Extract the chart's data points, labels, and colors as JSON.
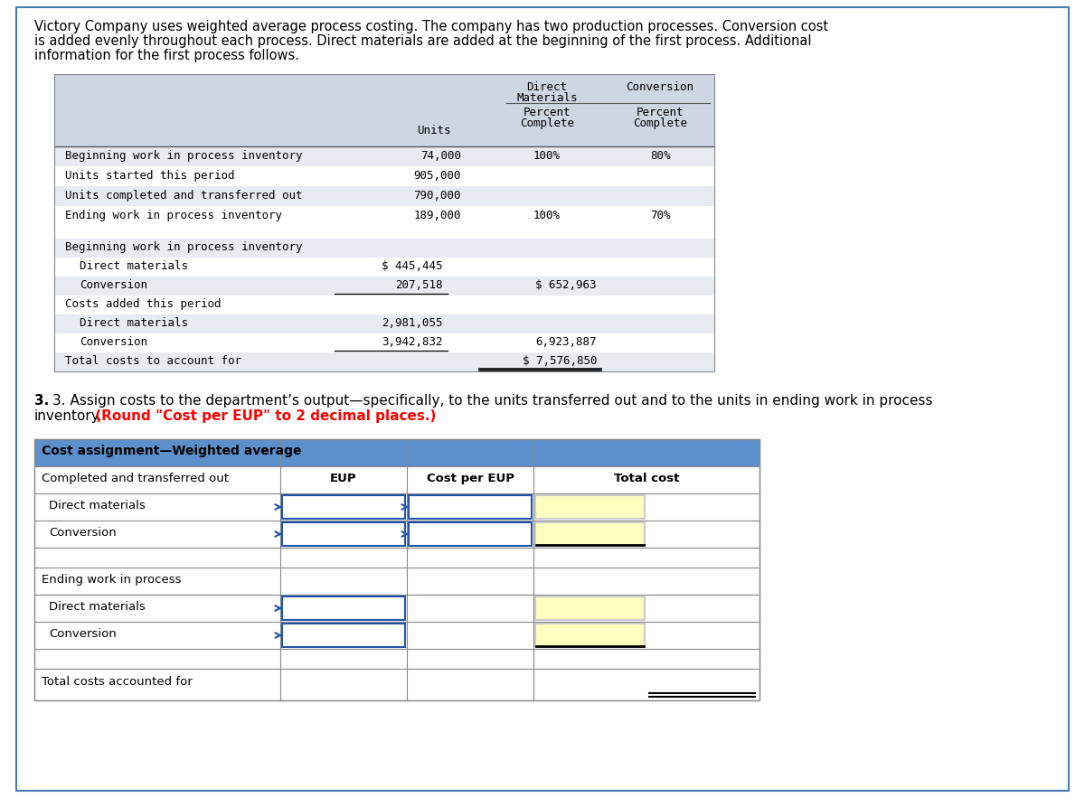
{
  "intro_text_line1": "Victory Company uses weighted average process costing. The company has two production processes. Conversion cost",
  "intro_text_line2": "is added evenly throughout each process. Direct materials are added at the beginning of the first process. Additional",
  "intro_text_line3": "information for the first process follows.",
  "top_table_header_bg": "#ced5e3",
  "top_table_row_alt_bg": "#e8ecf2",
  "top_rows": [
    {
      "label": "Beginning work in process inventory",
      "units": "74,000",
      "dm": "100%",
      "conv": "80%"
    },
    {
      "label": "Units started this period",
      "units": "905,000",
      "dm": "",
      "conv": ""
    },
    {
      "label": "Units completed and transferred out",
      "units": "790,000",
      "dm": "",
      "conv": ""
    },
    {
      "label": "Ending work in process inventory",
      "units": "189,000",
      "dm": "100%",
      "conv": "70%"
    }
  ],
  "cost_rows": [
    {
      "label": "Beginning work in process inventory",
      "col1": "",
      "col2": "",
      "indent": 0,
      "ul1": false,
      "ul2": false,
      "dbl2": false
    },
    {
      "label": "Direct materials",
      "col1": "$ 445,445",
      "col2": "",
      "indent": 1,
      "ul1": false,
      "ul2": false,
      "dbl2": false
    },
    {
      "label": "Conversion",
      "col1": "207,518",
      "col2": "$ 652,963",
      "indent": 1,
      "ul1": true,
      "ul2": false,
      "dbl2": false
    },
    {
      "label": "Costs added this period",
      "col1": "",
      "col2": "",
      "indent": 0,
      "ul1": false,
      "ul2": false,
      "dbl2": false
    },
    {
      "label": "Direct materials",
      "col1": "2,981,055",
      "col2": "",
      "indent": 1,
      "ul1": false,
      "ul2": false,
      "dbl2": false
    },
    {
      "label": "Conversion",
      "col1": "3,942,832",
      "col2": "6,923,887",
      "indent": 1,
      "ul1": true,
      "ul2": false,
      "dbl2": false
    },
    {
      "label": "Total costs to account for",
      "col1": "",
      "col2": "$ 7,576,850",
      "indent": 0,
      "ul1": false,
      "ul2": false,
      "dbl2": true
    }
  ],
  "q3_black": "3. Assign costs to the department’s output—specifically, to the units transferred out and to the units in ending work in process",
  "q3_black2": "inventory.",
  "q3_red": " (Round \"Cost per EUP\" to 2 decimal places.)",
  "bt_header_bg": "#5b90cc",
  "bt_header_text": "Cost assignment—Weighted average",
  "yellow_bg": "#ffffc0",
  "blue_border": "#2255aa",
  "gray_border": "#888888",
  "bg": "#ffffff"
}
